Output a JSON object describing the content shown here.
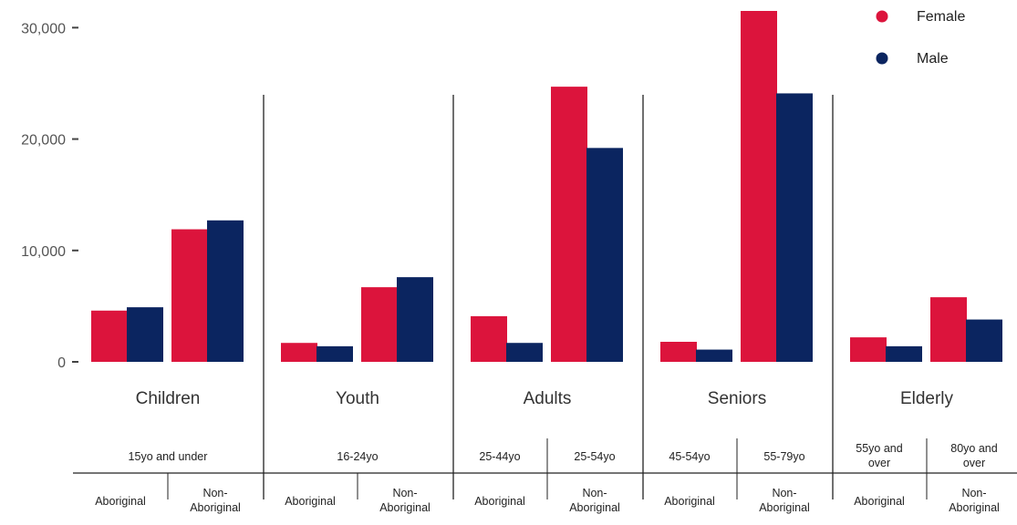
{
  "chart_data": {
    "type": "bar",
    "title": "",
    "ylim": [
      0,
      31500
    ],
    "yticks": [
      {
        "value": 0,
        "label": "0"
      },
      {
        "value": 10000,
        "label": "10,000"
      },
      {
        "value": 20000,
        "label": "20,000"
      },
      {
        "value": 30000,
        "label": "30,000"
      }
    ],
    "legend": {
      "placement": "top-right",
      "entries": [
        {
          "name": "Female",
          "color": "#DC143C"
        },
        {
          "name": "Male",
          "color": "#0B2560"
        }
      ]
    },
    "groups": [
      {
        "name": "Children",
        "age_labels": [
          "15yo and under"
        ]
      },
      {
        "name": "Youth",
        "age_labels": [
          "16-24yo"
        ]
      },
      {
        "name": "Adults",
        "age_labels": [
          "25-44yo",
          "25-54yo"
        ]
      },
      {
        "name": "Seniors",
        "age_labels": [
          "45-54yo",
          "55-79yo"
        ]
      },
      {
        "name": "Elderly",
        "age_labels": [
          "55yo and over",
          "80yo and over"
        ]
      }
    ],
    "categories": [
      "Aboriginal",
      "Non-Aboriginal",
      "Aboriginal",
      "Non-Aboriginal",
      "Aboriginal",
      "Non-Aboriginal",
      "Aboriginal",
      "Non-Aboriginal",
      "Aboriginal",
      "Non-Aboriginal"
    ],
    "category_lines": [
      [
        "Aboriginal"
      ],
      [
        "Non-",
        "Aboriginal"
      ],
      [
        "Aboriginal"
      ],
      [
        "Non-",
        "Aboriginal"
      ],
      [
        "Aboriginal"
      ],
      [
        "Non-",
        "Aboriginal"
      ],
      [
        "Aboriginal"
      ],
      [
        "Non-",
        "Aboriginal"
      ],
      [
        "Aboriginal"
      ],
      [
        "Non-",
        "Aboriginal"
      ]
    ],
    "series": [
      {
        "name": "Female",
        "color": "#DC143C",
        "values": [
          4600,
          11900,
          1700,
          6700,
          4100,
          24700,
          1800,
          31500,
          2200,
          5800
        ]
      },
      {
        "name": "Male",
        "color": "#0B2560",
        "values": [
          4900,
          12700,
          1400,
          7600,
          1700,
          19200,
          1100,
          24100,
          1400,
          3800
        ]
      }
    ]
  }
}
